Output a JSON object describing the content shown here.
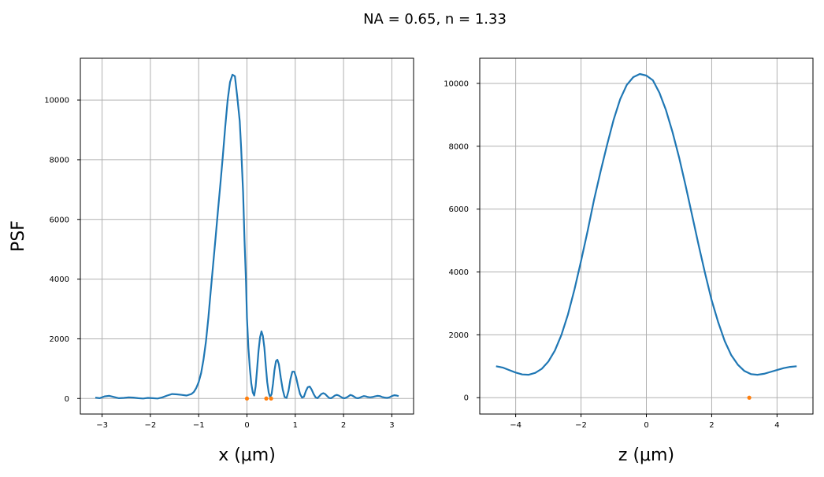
{
  "title": "NA = 0.65, n = 1.33",
  "chart_data": [
    {
      "type": "line",
      "xlabel": "x (μm)",
      "ylabel": "PSF",
      "xlim": [
        -3.45,
        3.45
      ],
      "ylim": [
        -520,
        11400
      ],
      "xticks": [
        -3,
        -2,
        -1,
        0,
        1,
        2,
        3
      ],
      "xtick_labels": [
        "−3",
        "−2",
        "−1",
        "0",
        "1",
        "2",
        "3"
      ],
      "yticks": [
        0,
        2000,
        4000,
        6000,
        8000,
        10000
      ],
      "ytick_labels": [
        "0",
        "2000",
        "4000",
        "6000",
        "8000",
        "10000"
      ],
      "grid": true,
      "colors": {
        "line": "#1f77b4",
        "points": "#ff7f0e",
        "grid": "#b0b0b0"
      },
      "series": [
        {
          "x": [
            -3.14,
            -3.05,
            -2.95,
            -2.85,
            -2.75,
            -2.65,
            -2.55,
            -2.45,
            -2.35,
            -2.25,
            -2.15,
            -2.05,
            -1.95,
            -1.85,
            -1.75,
            -1.65,
            -1.55,
            -1.45,
            -1.35,
            -1.25,
            -1.15,
            -1.1,
            -1.05,
            -1.0,
            -0.95,
            -0.9,
            -0.85,
            -0.8,
            -0.75,
            -0.7,
            -0.65,
            -0.6,
            -0.55,
            -0.5,
            -0.45,
            -0.4,
            -0.35,
            -0.3,
            -0.25,
            -0.2,
            -0.15,
            -0.12,
            -0.08,
            -0.05,
            -0.02,
            0.0,
            0.03,
            0.06,
            0.09,
            0.12,
            0.15,
            0.18,
            0.21,
            0.24,
            0.27,
            0.3,
            0.33,
            0.36,
            0.39,
            0.42,
            0.45,
            0.48,
            0.51,
            0.54,
            0.57,
            0.6,
            0.63,
            0.66,
            0.7,
            0.74,
            0.78,
            0.82,
            0.86,
            0.9,
            0.94,
            0.98,
            1.02,
            1.06,
            1.1,
            1.14,
            1.18,
            1.22,
            1.26,
            1.3,
            1.34,
            1.38,
            1.42,
            1.46,
            1.5,
            1.54,
            1.58,
            1.62,
            1.66,
            1.7,
            1.74,
            1.78,
            1.82,
            1.86,
            1.9,
            1.94,
            1.98,
            2.02,
            2.06,
            2.1,
            2.14,
            2.18,
            2.22,
            2.26,
            2.3,
            2.34,
            2.38,
            2.42,
            2.46,
            2.5,
            2.55,
            2.6,
            2.65,
            2.7,
            2.75,
            2.8,
            2.85,
            2.9,
            2.95,
            3.0,
            3.05,
            3.1,
            3.14
          ],
          "y": [
            30,
            10,
            70,
            90,
            50,
            10,
            20,
            40,
            30,
            10,
            0,
            20,
            10,
            0,
            40,
            100,
            150,
            140,
            120,
            100,
            150,
            220,
            350,
            550,
            850,
            1300,
            1900,
            2700,
            3600,
            4500,
            5400,
            6300,
            7200,
            8100,
            9100,
            10000,
            10600,
            10850,
            10800,
            10100,
            9300,
            8400,
            6900,
            5300,
            3900,
            2700,
            1700,
            1000,
            500,
            200,
            100,
            400,
            1000,
            1600,
            2050,
            2250,
            2100,
            1700,
            1100,
            550,
            200,
            50,
            150,
            500,
            950,
            1250,
            1300,
            1150,
            700,
            300,
            50,
            20,
            250,
            650,
            900,
            900,
            700,
            400,
            150,
            30,
            60,
            250,
            380,
            400,
            300,
            150,
            40,
            10,
            80,
            150,
            180,
            150,
            80,
            20,
            10,
            50,
            100,
            120,
            100,
            60,
            20,
            10,
            30,
            70,
            120,
            100,
            60,
            20,
            10,
            30,
            60,
            80,
            70,
            50,
            40,
            50,
            70,
            90,
            80,
            50,
            30,
            20,
            40,
            80,
            110,
            100,
            80
          ]
        }
      ],
      "points": {
        "x": [
          0.0,
          0.4,
          0.5
        ],
        "y": [
          0,
          0,
          0
        ]
      }
    },
    {
      "type": "line",
      "xlabel": "z (μm)",
      "ylabel": "",
      "xlim": [
        -5.1,
        5.1
      ],
      "ylim": [
        -520,
        10800
      ],
      "xticks": [
        -4,
        -2,
        0,
        2,
        4
      ],
      "xtick_labels": [
        "−4",
        "−2",
        "0",
        "2",
        "4"
      ],
      "yticks": [
        0,
        2000,
        4000,
        6000,
        8000,
        10000
      ],
      "ytick_labels": [
        "0",
        "2000",
        "4000",
        "6000",
        "8000",
        "10000"
      ],
      "grid": true,
      "colors": {
        "line": "#1f77b4",
        "points": "#ff7f0e",
        "grid": "#b0b0b0"
      },
      "series": [
        {
          "x": [
            -4.6,
            -4.4,
            -4.2,
            -4.0,
            -3.8,
            -3.6,
            -3.4,
            -3.2,
            -3.0,
            -2.8,
            -2.6,
            -2.4,
            -2.2,
            -2.0,
            -1.8,
            -1.6,
            -1.4,
            -1.2,
            -1.0,
            -0.8,
            -0.6,
            -0.4,
            -0.2,
            0.0,
            0.2,
            0.4,
            0.6,
            0.8,
            1.0,
            1.2,
            1.4,
            1.6,
            1.8,
            2.0,
            2.2,
            2.4,
            2.6,
            2.8,
            3.0,
            3.2,
            3.4,
            3.6,
            3.8,
            4.0,
            4.2,
            4.4,
            4.6
          ],
          "y": [
            1000,
            960,
            880,
            800,
            740,
            730,
            790,
            920,
            1150,
            1500,
            2000,
            2650,
            3450,
            4350,
            5300,
            6300,
            7200,
            8050,
            8850,
            9500,
            9950,
            10200,
            10300,
            10250,
            10100,
            9700,
            9150,
            8450,
            7650,
            6750,
            5800,
            4850,
            3950,
            3100,
            2400,
            1800,
            1350,
            1050,
            850,
            750,
            730,
            760,
            820,
            880,
            940,
            980,
            1000
          ]
        }
      ],
      "points": {
        "x": [
          3.15
        ],
        "y": [
          0
        ]
      }
    }
  ]
}
